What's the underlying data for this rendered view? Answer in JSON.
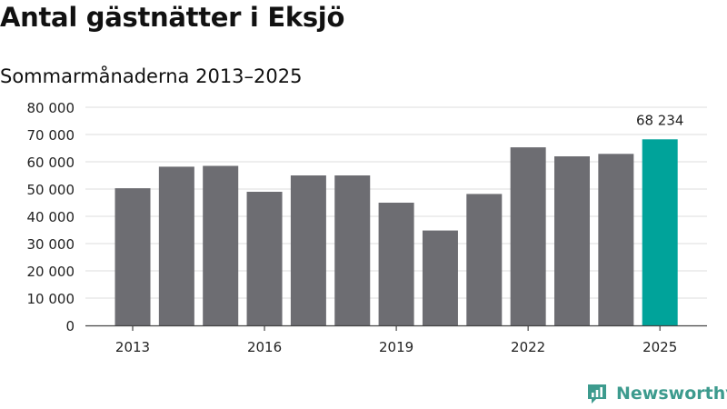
{
  "title": "Antal gästnätter i Eksjö",
  "subtitle": "Sommarmånaderna 2013–2025",
  "brand": {
    "name": "Newsworthy",
    "icon": "newsworthy-logo-icon"
  },
  "colors": {
    "bar": "#6d6d72",
    "highlight": "#00a39a",
    "grid": "#dddddd",
    "axis": "#444444",
    "brand": "#3d9b8e"
  },
  "chart_data": {
    "type": "bar",
    "title": "Antal gästnätter i Eksjö",
    "subtitle": "Sommarmånaderna 2013–2025",
    "categories": [
      "2013",
      "2014",
      "2015",
      "2016",
      "2017",
      "2018",
      "2019",
      "2020",
      "2021",
      "2022",
      "2023",
      "2024",
      "2025"
    ],
    "values": [
      50300,
      58200,
      58500,
      49000,
      55000,
      55000,
      45000,
      34800,
      48200,
      65300,
      62000,
      62900,
      68234
    ],
    "x_tick_labels": [
      "2013",
      "2016",
      "2019",
      "2022",
      "2025"
    ],
    "y_tick_labels": [
      "0",
      "10 000",
      "20 000",
      "30 000",
      "40 000",
      "50 000",
      "60 000",
      "70 000",
      "80 000"
    ],
    "ylim": [
      0,
      80000
    ],
    "highlight_index": 12,
    "highlight_label": "68 234",
    "grid": true,
    "xlabel": "",
    "ylabel": ""
  }
}
